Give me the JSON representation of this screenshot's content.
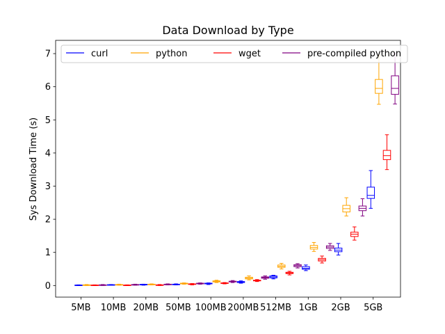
{
  "chart_data": {
    "type": "box",
    "title": "Data Download by Type",
    "xlabel": "",
    "ylabel": "Sys Download Time (s)",
    "ylim": [
      -0.35,
      7.4
    ],
    "yticks": [
      0,
      1,
      2,
      3,
      4,
      5,
      6,
      7
    ],
    "categories": [
      "5MB",
      "10MB",
      "20MB",
      "50MB",
      "100MB",
      "200MB",
      "512MB",
      "1GB",
      "2GB",
      "5GB"
    ],
    "legend_position": "top",
    "grid": false,
    "series": [
      {
        "name": "curl",
        "color": "#0000ff",
        "boxes": [
          {
            "whislo": 0.0,
            "q1": 0.005,
            "med": 0.01,
            "q3": 0.015,
            "whishi": 0.02
          },
          {
            "whislo": 0.01,
            "q1": 0.015,
            "med": 0.02,
            "q3": 0.025,
            "whishi": 0.03
          },
          {
            "whislo": 0.01,
            "q1": 0.02,
            "med": 0.03,
            "q3": 0.035,
            "whishi": 0.04
          },
          {
            "whislo": 0.02,
            "q1": 0.03,
            "med": 0.035,
            "q3": 0.04,
            "whishi": 0.05
          },
          {
            "whislo": 0.03,
            "q1": 0.05,
            "med": 0.06,
            "q3": 0.07,
            "whishi": 0.08
          },
          {
            "whislo": 0.07,
            "q1": 0.09,
            "med": 0.1,
            "q3": 0.12,
            "whishi": 0.14
          },
          {
            "whislo": 0.2,
            "q1": 0.23,
            "med": 0.26,
            "q3": 0.29,
            "whishi": 0.31
          },
          {
            "whislo": 0.45,
            "q1": 0.49,
            "med": 0.52,
            "q3": 0.57,
            "whishi": 0.62
          },
          {
            "whislo": 0.92,
            "q1": 1.02,
            "med": 1.07,
            "q3": 1.13,
            "whishi": 1.27
          },
          {
            "whislo": 2.33,
            "q1": 2.63,
            "med": 2.72,
            "q3": 2.97,
            "whishi": 3.47
          }
        ]
      },
      {
        "name": "python",
        "color": "#ffa500",
        "boxes": [
          {
            "whislo": 0.0,
            "q1": 0.01,
            "med": 0.015,
            "q3": 0.02,
            "whishi": 0.03
          },
          {
            "whislo": 0.01,
            "q1": 0.02,
            "med": 0.025,
            "q3": 0.03,
            "whishi": 0.04
          },
          {
            "whislo": 0.02,
            "q1": 0.025,
            "med": 0.03,
            "q3": 0.04,
            "whishi": 0.05
          },
          {
            "whislo": 0.04,
            "q1": 0.05,
            "med": 0.06,
            "q3": 0.07,
            "whishi": 0.08
          },
          {
            "whislo": 0.09,
            "q1": 0.11,
            "med": 0.12,
            "q3": 0.14,
            "whishi": 0.16
          },
          {
            "whislo": 0.17,
            "q1": 0.2,
            "med": 0.22,
            "q3": 0.25,
            "whishi": 0.29
          },
          {
            "whislo": 0.5,
            "q1": 0.55,
            "med": 0.58,
            "q3": 0.62,
            "whishi": 0.67
          },
          {
            "whislo": 1.03,
            "q1": 1.1,
            "med": 1.15,
            "q3": 1.21,
            "whishi": 1.3
          },
          {
            "whislo": 2.1,
            "q1": 2.22,
            "med": 2.32,
            "q3": 2.42,
            "whishi": 2.65
          },
          {
            "whislo": 5.47,
            "q1": 5.8,
            "med": 5.95,
            "q3": 6.22,
            "whishi": 6.95
          }
        ]
      },
      {
        "name": "wget",
        "color": "#ff0000",
        "boxes": [
          {
            "whislo": 0.0,
            "q1": 0.005,
            "med": 0.01,
            "q3": 0.015,
            "whishi": 0.02
          },
          {
            "whislo": 0.0,
            "q1": 0.005,
            "med": 0.01,
            "q3": 0.015,
            "whishi": 0.02
          },
          {
            "whislo": 0.0,
            "q1": 0.01,
            "med": 0.015,
            "q3": 0.02,
            "whishi": 0.03
          },
          {
            "whislo": 0.02,
            "q1": 0.035,
            "med": 0.04,
            "q3": 0.05,
            "whishi": 0.06
          },
          {
            "whislo": 0.05,
            "q1": 0.065,
            "med": 0.07,
            "q3": 0.08,
            "whishi": 0.09
          },
          {
            "whislo": 0.12,
            "q1": 0.14,
            "med": 0.15,
            "q3": 0.16,
            "whishi": 0.18
          },
          {
            "whislo": 0.32,
            "q1": 0.36,
            "med": 0.38,
            "q3": 0.4,
            "whishi": 0.43
          },
          {
            "whislo": 0.68,
            "q1": 0.74,
            "med": 0.78,
            "q3": 0.82,
            "whishi": 0.89
          },
          {
            "whislo": 1.37,
            "q1": 1.48,
            "med": 1.55,
            "q3": 1.61,
            "whishi": 1.77
          },
          {
            "whislo": 3.5,
            "q1": 3.8,
            "med": 3.92,
            "q3": 4.08,
            "whishi": 4.55
          }
        ]
      },
      {
        "name": "pre-compiled python",
        "color": "#800080",
        "boxes": [
          {
            "whislo": 0.0,
            "q1": 0.01,
            "med": 0.015,
            "q3": 0.02,
            "whishi": 0.03
          },
          {
            "whislo": 0.01,
            "q1": 0.02,
            "med": 0.025,
            "q3": 0.03,
            "whishi": 0.04
          },
          {
            "whislo": 0.02,
            "q1": 0.03,
            "med": 0.035,
            "q3": 0.04,
            "whishi": 0.05
          },
          {
            "whislo": 0.04,
            "q1": 0.05,
            "med": 0.06,
            "q3": 0.07,
            "whishi": 0.08
          },
          {
            "whislo": 0.09,
            "q1": 0.11,
            "med": 0.12,
            "q3": 0.13,
            "whishi": 0.15
          },
          {
            "whislo": 0.19,
            "q1": 0.22,
            "med": 0.24,
            "q3": 0.26,
            "whishi": 0.29
          },
          {
            "whislo": 0.53,
            "q1": 0.57,
            "med": 0.6,
            "q3": 0.63,
            "whishi": 0.66
          },
          {
            "whislo": 1.06,
            "q1": 1.12,
            "med": 1.16,
            "q3": 1.2,
            "whishi": 1.27
          },
          {
            "whislo": 2.1,
            "q1": 2.26,
            "med": 2.33,
            "q3": 2.4,
            "whishi": 2.62
          },
          {
            "whislo": 5.48,
            "q1": 5.77,
            "med": 5.95,
            "q3": 6.33,
            "whishi": 7.0
          }
        ]
      }
    ]
  }
}
